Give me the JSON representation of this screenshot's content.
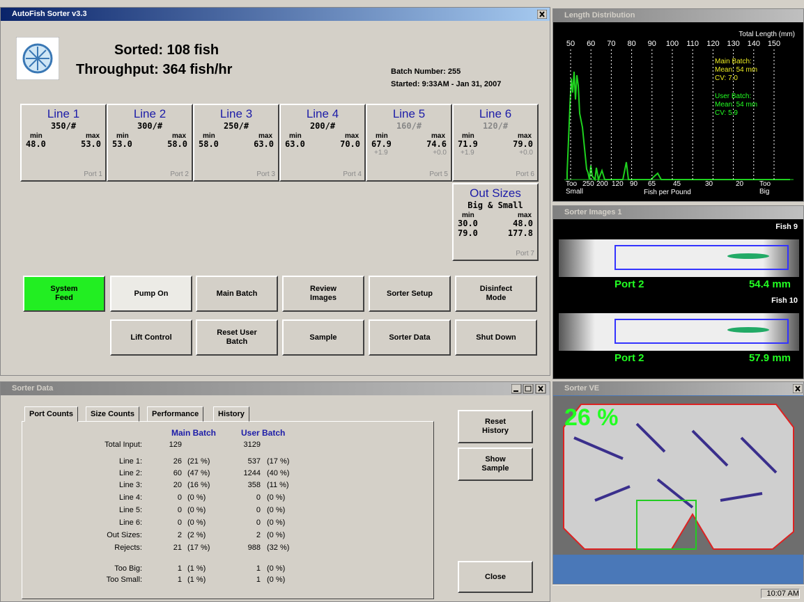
{
  "main_window": {
    "title": "AutoFish Sorter v3.3",
    "sorted": "Sorted: 108 fish",
    "throughput": "Throughput: 364 fish/hr",
    "batch_number": "Batch Number: 255",
    "started": "Started: 9:33AM - Jan 31, 2007",
    "lines": [
      {
        "name": "Line 1",
        "size": "350/#",
        "min_label": "min",
        "max_label": "max",
        "min": "48.0",
        "max": "53.0",
        "port": "Port 1",
        "active": true
      },
      {
        "name": "Line 2",
        "size": "300/#",
        "min_label": "min",
        "max_label": "max",
        "min": "53.0",
        "max": "58.0",
        "port": "Port 2",
        "active": true
      },
      {
        "name": "Line 3",
        "size": "250/#",
        "min_label": "min",
        "max_label": "max",
        "min": "58.0",
        "max": "63.0",
        "port": "Port 3",
        "active": true
      },
      {
        "name": "Line 4",
        "size": "200/#",
        "min_label": "min",
        "max_label": "max",
        "min": "63.0",
        "max": "70.0",
        "port": "Port 4",
        "active": true
      },
      {
        "name": "Line 5",
        "size": "160/#",
        "min_label": "min",
        "max_label": "max",
        "min": "67.9",
        "max": "74.6",
        "min_offset": "+1.9",
        "max_offset": "+0.0",
        "port": "Port 5",
        "active": false
      },
      {
        "name": "Line 6",
        "size": "120/#",
        "min_label": "min",
        "max_label": "max",
        "min": "71.9",
        "max": "79.0",
        "min_offset": "+1.9",
        "max_offset": "+0.0",
        "port": "Port 6",
        "active": false
      }
    ],
    "out_sizes": {
      "name": "Out Sizes",
      "subtitle": "Big & Small",
      "min_label": "min",
      "max_label": "max",
      "rows": [
        [
          "30.0",
          "48.0"
        ],
        [
          "79.0",
          "177.8"
        ]
      ],
      "port": "Port 7"
    },
    "buttons": [
      "System Feed",
      "Pump On",
      "Main Batch",
      "Review Images",
      "Sorter Setup",
      "Disinfect Mode",
      "Lift Control",
      "Reset User Batch",
      "Sample",
      "Sorter Data",
      "Shut Down"
    ]
  },
  "sorter_data": {
    "title": "Sorter Data",
    "tabs": [
      "Port Counts",
      "Size Counts",
      "Performance",
      "History"
    ],
    "columns": [
      "Main Batch",
      "User Batch"
    ],
    "rows": [
      {
        "label": "Total Input:",
        "main": 129,
        "user": 3129
      },
      {
        "label": "Line 1:",
        "main": 26,
        "main_pct": "(21 %)",
        "user": 537,
        "user_pct": "(17 %)"
      },
      {
        "label": "Line 2:",
        "main": 60,
        "main_pct": "(47 %)",
        "user": 1244,
        "user_pct": "(40 %)"
      },
      {
        "label": "Line 3:",
        "main": 20,
        "main_pct": "(16 %)",
        "user": 358,
        "user_pct": "(11 %)"
      },
      {
        "label": "Line 4:",
        "main": 0,
        "main_pct": "(0 %)",
        "user": 0,
        "user_pct": "(0 %)"
      },
      {
        "label": "Line 5:",
        "main": 0,
        "main_pct": "(0 %)",
        "user": 0,
        "user_pct": "(0 %)"
      },
      {
        "label": "Line 6:",
        "main": 0,
        "main_pct": "(0 %)",
        "user": 0,
        "user_pct": "(0 %)"
      },
      {
        "label": "Out Sizes:",
        "main": 2,
        "main_pct": "(2 %)",
        "user": 2,
        "user_pct": "(0 %)"
      },
      {
        "label": "Rejects:",
        "main": 21,
        "main_pct": "(17 %)",
        "user": 988,
        "user_pct": "(32 %)"
      },
      {
        "label": "Too Big:",
        "main": 1,
        "main_pct": "(1 %)",
        "user": 1,
        "user_pct": "(0 %)"
      },
      {
        "label": "Too Small:",
        "main": 1,
        "main_pct": "(1 %)",
        "user": 1,
        "user_pct": "(0 %)"
      }
    ],
    "buttons": [
      "Reset History",
      "Show Sample",
      "Close"
    ]
  },
  "length_distribution": {
    "title": "Length Distribution",
    "axis_title": "Total Length (mm)",
    "top_ticks": [
      50,
      60,
      70,
      80,
      90,
      100,
      110,
      120,
      130,
      140,
      150
    ],
    "bottom_ticks": [
      "Too Small",
      "250",
      "200",
      "120",
      "90",
      "65",
      "45",
      "30",
      "20",
      "Too Big"
    ],
    "bottom_title": "Fish per Pound",
    "main_batch": [
      "Main Batch:",
      "Mean: 54 mm",
      "CV: 7.0"
    ],
    "user_batch": [
      "User Batch:",
      "Mean: 54 mm",
      "CV: 5.9"
    ]
  },
  "sorter_images": {
    "title": "Sorter Images 1",
    "images": [
      {
        "fish": "Fish 9",
        "port": "Port 2",
        "length": "54.4 mm"
      },
      {
        "fish": "Fish 10",
        "port": "Port 2",
        "length": "57.9 mm"
      }
    ]
  },
  "sorter_ve": {
    "title": "Sorter VE",
    "percent": "26 %"
  },
  "taskbar": {
    "clock": "10:07 AM"
  }
}
